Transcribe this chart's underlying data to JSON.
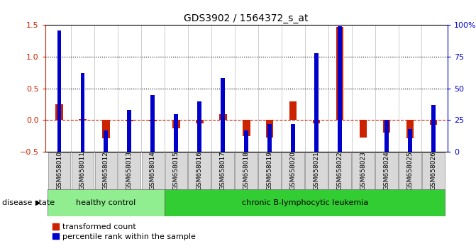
{
  "title": "GDS3902 / 1564372_s_at",
  "categories": [
    "GSM658010",
    "GSM658011",
    "GSM658012",
    "GSM658013",
    "GSM658014",
    "GSM658015",
    "GSM658016",
    "GSM658017",
    "GSM658018",
    "GSM658019",
    "GSM658020",
    "GSM658021",
    "GSM658022",
    "GSM658023",
    "GSM658024",
    "GSM658025",
    "GSM658026"
  ],
  "red_values": [
    0.25,
    0.02,
    -0.28,
    -0.02,
    -0.02,
    -0.13,
    -0.05,
    0.09,
    -0.25,
    -0.27,
    0.3,
    -0.05,
    1.47,
    -0.27,
    -0.2,
    -0.28,
    -0.07
  ],
  "blue_percentile": [
    96,
    62,
    17,
    33,
    45,
    30,
    40,
    58,
    17,
    22,
    22,
    78,
    99,
    null,
    25,
    18,
    37
  ],
  "healthy_control_count": 5,
  "group1_label": "healthy control",
  "group2_label": "chronic B-lymphocytic leukemia",
  "legend_red": "transformed count",
  "legend_blue": "percentile rank within the sample",
  "ylim_left": [
    -0.5,
    1.5
  ],
  "ylim_right": [
    0,
    100
  ],
  "right_ticks": [
    0,
    25,
    50,
    75,
    100
  ],
  "right_tick_labels": [
    "0",
    "25",
    "50",
    "75",
    "100%"
  ],
  "left_ticks": [
    -0.5,
    0.0,
    0.5,
    1.0,
    1.5
  ],
  "hlines": [
    0.5,
    1.0
  ],
  "red_color": "#cc2200",
  "blue_color": "#0000cc",
  "group1_bg": "#90ee90",
  "group2_bg": "#32cd32",
  "disease_state_label": "disease state"
}
